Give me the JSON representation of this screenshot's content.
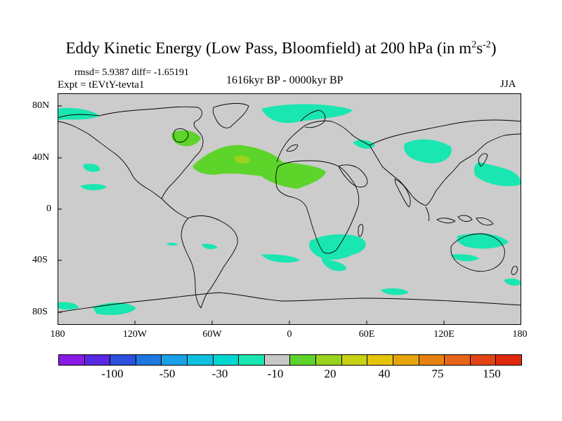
{
  "title": {
    "main": "Eddy Kinetic Energy (Low Pass, Bloomfield) at 200 hPa (in m",
    "sup1": "2",
    "s": "s",
    "sup2": "-2",
    "close": ")"
  },
  "stats": "rmsd= 5.9387 diff= -1.65191",
  "experiment": "Expt = tEVtY-tevta1",
  "period": "1616kyr BP - 0000kyr BP",
  "season": "JJA",
  "lat_labels": [
    "80N",
    "40N",
    "0",
    "40S",
    "80S"
  ],
  "lon_labels": [
    "180",
    "120W",
    "60W",
    "0",
    "60E",
    "120E",
    "180"
  ],
  "colorbar": {
    "colors": [
      "#8a1ae6",
      "#5a28e0",
      "#2a50dc",
      "#1e78e0",
      "#1aa0e6",
      "#10c0e0",
      "#00d8d0",
      "#19e6b0",
      "#c8c8c8",
      "#5cd42a",
      "#9ad21e",
      "#c8d214",
      "#e6c40a",
      "#e6a50a",
      "#e6820f",
      "#e6641a",
      "#e04414",
      "#e02a0a"
    ],
    "labels": [
      "-100",
      "-50",
      "-30",
      "-10",
      "20",
      "40",
      "75",
      "150"
    ]
  },
  "field_colors": {
    "land_sea_background": "#cccccc",
    "coastline": "#000000",
    "negative_cyan": "#19e6b0",
    "positive_green": "#5cd42a",
    "positive_lime": "#9ad21e"
  }
}
